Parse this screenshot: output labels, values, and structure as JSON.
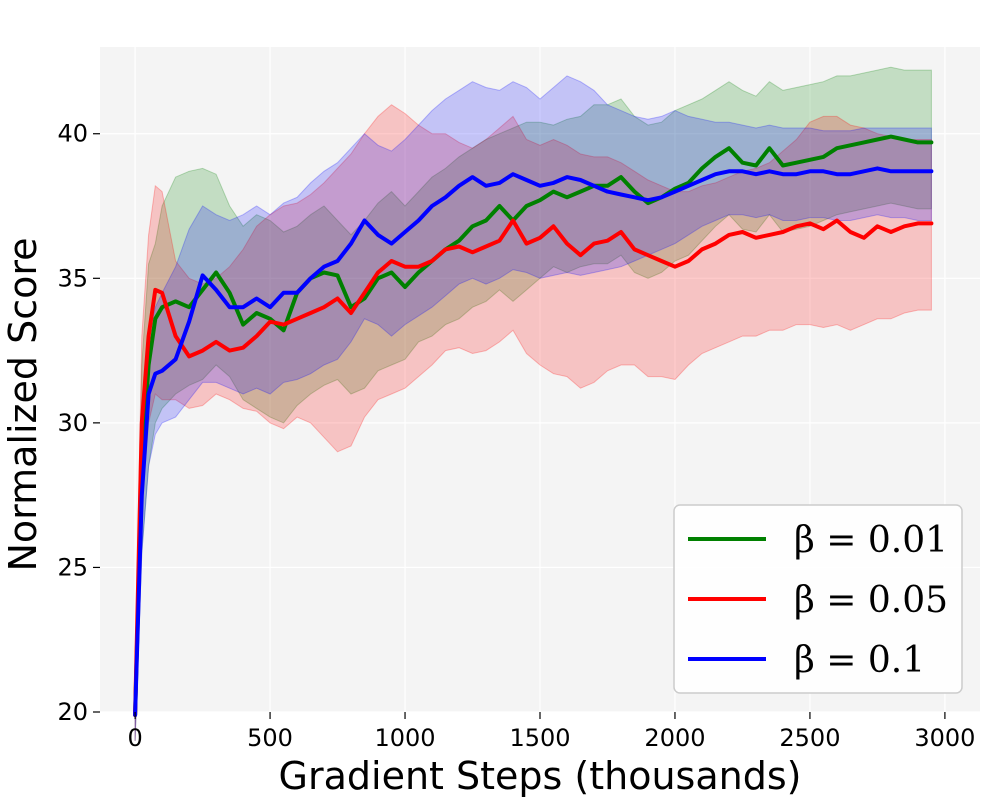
{
  "chart_data": {
    "type": "line",
    "title": "",
    "xlabel": "Gradient Steps (thousands)",
    "ylabel": "Normalized Score",
    "xlim": [
      -130,
      3130
    ],
    "ylim": [
      20,
      43
    ],
    "xticks": [
      0,
      500,
      1000,
      1500,
      2000,
      2500,
      3000
    ],
    "yticks": [
      20,
      25,
      30,
      35,
      40
    ],
    "grid": true,
    "legend_position": "bottom-right",
    "legend_symbol": "β",
    "x": [
      0,
      25,
      50,
      75,
      100,
      150,
      200,
      250,
      300,
      350,
      400,
      450,
      500,
      550,
      600,
      650,
      700,
      750,
      800,
      850,
      900,
      950,
      1000,
      1050,
      1100,
      1150,
      1200,
      1250,
      1300,
      1350,
      1400,
      1450,
      1500,
      1550,
      1600,
      1650,
      1700,
      1750,
      1800,
      1850,
      1900,
      1950,
      2000,
      2050,
      2100,
      2150,
      2200,
      2250,
      2300,
      2350,
      2400,
      2450,
      2500,
      2550,
      2600,
      2650,
      2700,
      2750,
      2800,
      2850,
      2900,
      2950
    ],
    "series": [
      {
        "name": "β = 0.01",
        "color": "#008000",
        "values": [
          19.9,
          28.5,
          32.0,
          33.6,
          34.0,
          34.2,
          34.0,
          34.6,
          35.2,
          34.5,
          33.4,
          33.8,
          33.6,
          33.2,
          34.5,
          35.0,
          35.2,
          35.1,
          34.0,
          34.3,
          35.0,
          35.2,
          34.7,
          35.2,
          35.6,
          36.0,
          36.3,
          36.8,
          37.0,
          37.5,
          37.0,
          37.5,
          37.7,
          38.0,
          37.8,
          38.0,
          38.2,
          38.2,
          38.5,
          38.0,
          37.6,
          37.8,
          38.1,
          38.3,
          38.8,
          39.2,
          39.5,
          39.0,
          38.9,
          39.5,
          38.9,
          39.0,
          39.1,
          39.2,
          39.5,
          39.6,
          39.7,
          39.8,
          39.9,
          39.8,
          39.7,
          39.7
        ],
        "upper": [
          21.0,
          32.0,
          35.5,
          36.2,
          37.5,
          38.5,
          38.7,
          38.8,
          38.6,
          37.5,
          36.8,
          37.2,
          37.0,
          36.6,
          36.8,
          37.2,
          37.5,
          37.0,
          36.5,
          37.0,
          37.6,
          38.0,
          37.5,
          38.0,
          38.5,
          38.8,
          39.2,
          39.5,
          39.8,
          40.0,
          40.2,
          40.4,
          40.4,
          40.3,
          40.5,
          40.6,
          41.0,
          41.0,
          41.2,
          40.6,
          40.3,
          40.4,
          40.8,
          41.0,
          41.2,
          41.5,
          41.8,
          41.5,
          41.3,
          41.8,
          41.5,
          41.6,
          41.7,
          41.8,
          42.0,
          42.0,
          42.1,
          42.2,
          42.3,
          42.2,
          42.2,
          42.2
        ],
        "lower": [
          19.0,
          25.5,
          28.5,
          30.0,
          30.5,
          31.0,
          31.3,
          31.5,
          32.0,
          31.6,
          30.8,
          30.5,
          30.2,
          30.0,
          30.6,
          31.0,
          31.3,
          31.5,
          31.0,
          31.2,
          31.8,
          32.0,
          32.2,
          32.8,
          33.0,
          33.4,
          33.6,
          34.0,
          34.2,
          34.6,
          34.2,
          34.6,
          35.0,
          35.4,
          35.2,
          35.4,
          35.5,
          35.5,
          35.8,
          35.2,
          35.0,
          35.2,
          35.6,
          35.8,
          36.3,
          36.8,
          37.2,
          36.7,
          36.6,
          37.2,
          36.6,
          36.7,
          36.8,
          37.0,
          37.2,
          37.3,
          37.4,
          37.5,
          37.6,
          37.5,
          37.4,
          37.4
        ]
      },
      {
        "name": "β = 0.05",
        "color": "#ff0000",
        "values": [
          19.9,
          30.0,
          33.0,
          34.6,
          34.5,
          33.0,
          32.3,
          32.5,
          32.8,
          32.5,
          32.6,
          33.0,
          33.5,
          33.4,
          33.6,
          33.8,
          34.0,
          34.3,
          33.8,
          34.5,
          35.2,
          35.6,
          35.4,
          35.4,
          35.6,
          36.0,
          36.1,
          35.9,
          36.1,
          36.3,
          37.0,
          36.2,
          36.4,
          36.8,
          36.2,
          35.8,
          36.2,
          36.3,
          36.6,
          36.0,
          35.8,
          35.6,
          35.4,
          35.6,
          36.0,
          36.2,
          36.5,
          36.6,
          36.4,
          36.5,
          36.6,
          36.8,
          36.9,
          36.7,
          37.0,
          36.6,
          36.4,
          36.8,
          36.6,
          36.8,
          36.9,
          36.9
        ],
        "upper": [
          21.0,
          33.0,
          36.5,
          38.2,
          38.0,
          35.6,
          35.0,
          34.8,
          35.0,
          35.4,
          36.0,
          36.8,
          37.2,
          37.5,
          37.6,
          37.9,
          38.3,
          38.8,
          39.3,
          40.0,
          40.6,
          41.0,
          40.7,
          40.3,
          40.0,
          40.0,
          39.7,
          39.5,
          39.8,
          40.2,
          40.6,
          39.8,
          39.6,
          39.8,
          39.6,
          39.3,
          39.2,
          39.2,
          39.0,
          38.7,
          38.4,
          38.2,
          38.0,
          38.0,
          38.2,
          38.3,
          38.5,
          38.7,
          38.8,
          39.0,
          39.4,
          39.8,
          40.4,
          40.6,
          40.6,
          40.3,
          40.2,
          40.0,
          39.9,
          39.8,
          39.8,
          39.8
        ],
        "lower": [
          19.0,
          27.0,
          30.0,
          31.0,
          30.8,
          30.8,
          30.5,
          30.6,
          31.0,
          30.8,
          30.5,
          30.4,
          30.0,
          29.8,
          30.2,
          30.0,
          29.5,
          29.0,
          29.2,
          30.2,
          30.8,
          31.0,
          31.2,
          31.6,
          32.0,
          32.5,
          32.6,
          32.4,
          32.5,
          32.8,
          33.2,
          32.4,
          32.0,
          31.7,
          31.6,
          31.2,
          31.4,
          31.8,
          32.0,
          32.0,
          31.6,
          31.6,
          31.5,
          32.0,
          32.4,
          32.6,
          32.8,
          33.0,
          33.0,
          33.2,
          33.2,
          33.4,
          33.4,
          33.3,
          33.4,
          33.2,
          33.4,
          33.6,
          33.6,
          33.8,
          33.9,
          33.9
        ]
      },
      {
        "name": "β = 0.1",
        "color": "#0000ff",
        "values": [
          19.9,
          27.5,
          31.0,
          31.7,
          31.8,
          32.2,
          33.5,
          35.1,
          34.6,
          34.0,
          34.0,
          34.3,
          34.0,
          34.5,
          34.5,
          35.0,
          35.4,
          35.6,
          36.2,
          37.0,
          36.5,
          36.2,
          36.6,
          37.0,
          37.5,
          37.8,
          38.2,
          38.5,
          38.2,
          38.3,
          38.6,
          38.4,
          38.2,
          38.3,
          38.5,
          38.4,
          38.2,
          38.0,
          37.9,
          37.8,
          37.7,
          37.8,
          38.0,
          38.2,
          38.4,
          38.6,
          38.7,
          38.7,
          38.6,
          38.7,
          38.6,
          38.6,
          38.7,
          38.7,
          38.6,
          38.6,
          38.7,
          38.8,
          38.7,
          38.7,
          38.7,
          38.7
        ],
        "upper": [
          21.0,
          30.0,
          33.0,
          34.0,
          34.5,
          35.4,
          36.7,
          37.5,
          37.2,
          37.0,
          37.2,
          37.5,
          37.2,
          37.6,
          37.8,
          38.3,
          38.7,
          39.0,
          39.5,
          40.0,
          39.6,
          39.4,
          39.8,
          40.3,
          40.8,
          41.2,
          41.5,
          41.8,
          41.6,
          41.5,
          41.8,
          41.6,
          41.2,
          41.6,
          42.0,
          41.8,
          41.5,
          41.0,
          40.8,
          40.6,
          40.5,
          40.6,
          40.8,
          40.6,
          40.5,
          40.4,
          40.4,
          40.3,
          40.2,
          40.3,
          40.2,
          40.2,
          40.2,
          40.1,
          40.1,
          40.1,
          40.2,
          40.2,
          40.2,
          40.2,
          40.2,
          40.2
        ],
        "lower": [
          19.0,
          25.5,
          28.5,
          29.6,
          30.0,
          30.2,
          30.8,
          31.4,
          31.4,
          31.2,
          31.0,
          31.2,
          31.0,
          31.4,
          31.5,
          31.7,
          32.0,
          32.2,
          32.8,
          33.6,
          33.4,
          33.0,
          33.4,
          33.7,
          34.0,
          34.4,
          34.8,
          35.0,
          34.8,
          35.0,
          35.3,
          35.2,
          35.0,
          35.1,
          35.2,
          35.1,
          35.2,
          35.3,
          35.4,
          35.6,
          35.8,
          36.0,
          36.2,
          36.5,
          36.8,
          37.0,
          37.2,
          37.2,
          37.1,
          37.2,
          37.0,
          37.0,
          37.1,
          37.1,
          37.0,
          37.0,
          37.1,
          37.2,
          37.1,
          37.1,
          37.0,
          37.0
        ]
      }
    ]
  }
}
